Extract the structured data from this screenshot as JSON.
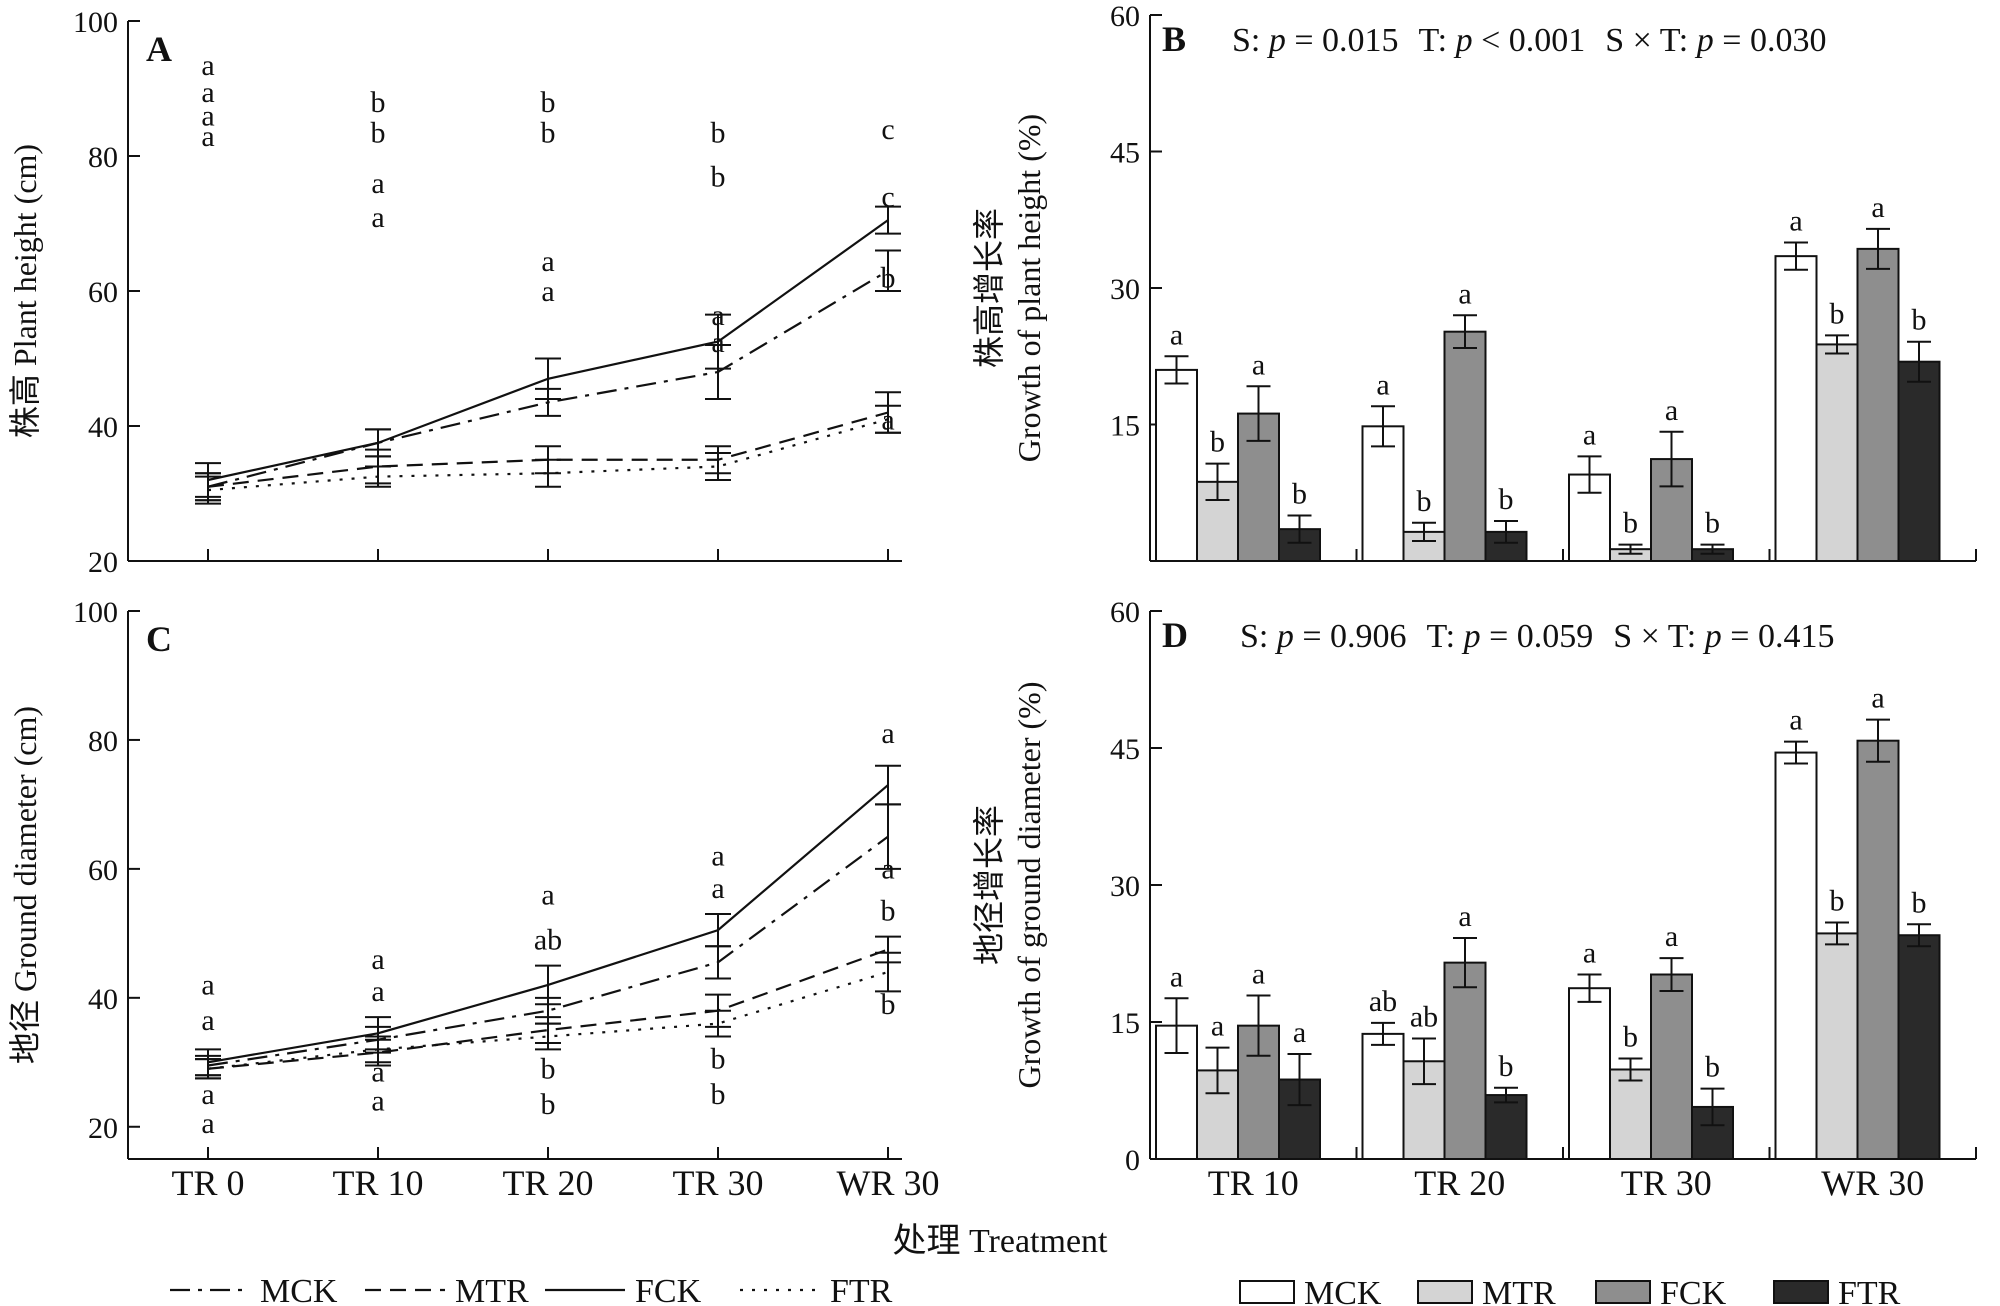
{
  "figure": {
    "xlabel_shared": "处理 Treatment",
    "line_legend": [
      {
        "name": "MCK",
        "style": "dashdot"
      },
      {
        "name": "MTR",
        "style": "dash"
      },
      {
        "name": "FCK",
        "style": "solid"
      },
      {
        "name": "FTR",
        "style": "dot"
      }
    ],
    "bar_legend": [
      {
        "name": "MCK",
        "color": "#ffffff"
      },
      {
        "name": "MTR",
        "color": "#d4d4d4"
      },
      {
        "name": "FCK",
        "color": "#8e8e8e"
      },
      {
        "name": "FTR",
        "color": "#2a2a2a"
      }
    ]
  },
  "chart_data": [
    {
      "panel": "A",
      "type": "line",
      "ylabel": "株高 Plant height (cm)",
      "ylim": [
        20,
        100
      ],
      "yticks": [
        20,
        40,
        60,
        80,
        100
      ],
      "categories": [
        "TR 0",
        "TR 10",
        "TR 20",
        "TR 30",
        "WR 30"
      ],
      "series": [
        {
          "name": "MCK",
          "style": "dashdot",
          "values": [
            31,
            37.5,
            43.5,
            48,
            63
          ],
          "err": [
            2,
            2,
            2,
            4,
            3
          ]
        },
        {
          "name": "MTR",
          "style": "dash",
          "values": [
            31,
            34,
            35,
            35,
            42
          ],
          "err": [
            2,
            2.5,
            2,
            2,
            3
          ]
        },
        {
          "name": "FCK",
          "style": "solid",
          "values": [
            32,
            37.5,
            47,
            52.5,
            70.5
          ],
          "err": [
            2.5,
            2,
            3,
            4,
            2
          ]
        },
        {
          "name": "FTR",
          "style": "dot",
          "values": [
            30.5,
            32.5,
            33,
            34,
            41
          ],
          "err": [
            2,
            1.5,
            2,
            2,
            2
          ]
        }
      ],
      "sig_labels": [
        {
          "cat": "TR 0",
          "value": 81.5,
          "text": "a"
        },
        {
          "cat": "TR 0",
          "value": 84.5,
          "text": "a"
        },
        {
          "cat": "TR 0",
          "value": 88,
          "text": "a"
        },
        {
          "cat": "TR 0",
          "value": 92,
          "text": "a"
        },
        {
          "cat": "TR 10",
          "value": 69.5,
          "text": "a"
        },
        {
          "cat": "TR 10",
          "value": 74.5,
          "text": "a"
        },
        {
          "cat": "TR 10",
          "value": 82,
          "text": "b"
        },
        {
          "cat": "TR 10",
          "value": 86.5,
          "text": "b"
        },
        {
          "cat": "TR 20",
          "value": 58.5,
          "text": "a"
        },
        {
          "cat": "TR 20",
          "value": 63,
          "text": "a"
        },
        {
          "cat": "TR 20",
          "value": 82,
          "text": "b"
        },
        {
          "cat": "TR 20",
          "value": 86.5,
          "text": "b"
        },
        {
          "cat": "TR 30",
          "value": 51,
          "text": "a"
        },
        {
          "cat": "TR 30",
          "value": 55,
          "text": "a"
        },
        {
          "cat": "TR 30",
          "value": 75.5,
          "text": "b"
        },
        {
          "cat": "TR 30",
          "value": 82,
          "text": "b"
        },
        {
          "cat": "WR 30",
          "value": 39.5,
          "text": "a"
        },
        {
          "cat": "WR 30",
          "value": 60.5,
          "text": "b"
        },
        {
          "cat": "WR 30",
          "value": 72.5,
          "text": "c"
        },
        {
          "cat": "WR 30",
          "value": 82.5,
          "text": "c"
        }
      ]
    },
    {
      "panel": "B",
      "type": "bar",
      "ylabel_top": "株高增长率",
      "ylabel_bottom": "Growth of plant height (%)",
      "stats": {
        "s_label": "S:",
        "s_p": "p",
        "s_val": "= 0.015",
        "t_label": "T:",
        "t_p": "p",
        "t_val": "< 0.001",
        "st_label": "S × T:",
        "st_p": "p",
        "st_val": "= 0.030"
      },
      "ylim": [
        0,
        60
      ],
      "yticks": [
        15,
        30,
        45,
        60
      ],
      "categories": [
        "TR 10",
        "TR 20",
        "TR 30",
        "WR 30"
      ],
      "show_xticklabels": false,
      "series": [
        {
          "name": "MCK",
          "values": [
            21,
            14.8,
            9.5,
            33.5
          ],
          "err": [
            1.5,
            2.2,
            2,
            1.5
          ]
        },
        {
          "name": "MTR",
          "values": [
            8.7,
            3.2,
            1.3,
            23.8
          ],
          "err": [
            2,
            1,
            0.5,
            1
          ]
        },
        {
          "name": "FCK",
          "values": [
            16.2,
            25.2,
            11.2,
            34.3
          ],
          "err": [
            3,
            1.8,
            3,
            2.2
          ]
        },
        {
          "name": "FTR",
          "values": [
            3.5,
            3.2,
            1.3,
            21.9
          ],
          "err": [
            1.5,
            1.2,
            0.5,
            2.2
          ]
        }
      ],
      "sig": [
        [
          "a",
          "b",
          "a",
          "b"
        ],
        [
          "a",
          "b",
          "a",
          "b"
        ],
        [
          "a",
          "b",
          "a",
          "b"
        ],
        [
          "a",
          "b",
          "a",
          "b"
        ]
      ]
    },
    {
      "panel": "C",
      "type": "line",
      "ylabel": "地径 Ground diameter (cm)",
      "ylim": [
        15,
        100
      ],
      "yticks": [
        20,
        40,
        60,
        80,
        100
      ],
      "categories": [
        "TR 0",
        "TR 10",
        "TR 20",
        "TR 30",
        "WR 30"
      ],
      "xtick_labels": [
        "TR 0",
        "TR 10",
        "TR 20",
        "TR 30",
        "WR 30"
      ],
      "series": [
        {
          "name": "MCK",
          "style": "dashdot",
          "values": [
            29.5,
            33.5,
            38,
            45.5,
            65
          ],
          "err": [
            1.5,
            2,
            2,
            2.5,
            5
          ]
        },
        {
          "name": "MTR",
          "style": "dash",
          "values": [
            29,
            31.5,
            35,
            38,
            47.5
          ],
          "err": [
            1.5,
            2,
            2,
            2.5,
            2
          ]
        },
        {
          "name": "FCK",
          "style": "solid",
          "values": [
            30,
            34.5,
            42,
            50.5,
            73
          ],
          "err": [
            2,
            2.5,
            3,
            2.5,
            3
          ]
        },
        {
          "name": "FTR",
          "style": "dot",
          "values": [
            29,
            32,
            34,
            36,
            44
          ],
          "err": [
            1.5,
            2,
            2,
            2,
            3
          ]
        }
      ],
      "sig_labels": [
        {
          "cat": "TR 0",
          "value": 40.5,
          "text": "a"
        },
        {
          "cat": "TR 0",
          "value": 35,
          "text": "a"
        },
        {
          "cat": "TR 0",
          "value": 23.5,
          "text": "a"
        },
        {
          "cat": "TR 0",
          "value": 19,
          "text": "a"
        },
        {
          "cat": "TR 10",
          "value": 44.5,
          "text": "a"
        },
        {
          "cat": "TR 10",
          "value": 39.5,
          "text": "a"
        },
        {
          "cat": "TR 10",
          "value": 27,
          "text": "a"
        },
        {
          "cat": "TR 10",
          "value": 22.5,
          "text": "a"
        },
        {
          "cat": "TR 20",
          "value": 54.5,
          "text": "a"
        },
        {
          "cat": "TR 20",
          "value": 47.5,
          "text": "ab"
        },
        {
          "cat": "TR 20",
          "value": 27.5,
          "text": "b"
        },
        {
          "cat": "TR 20",
          "value": 22,
          "text": "b"
        },
        {
          "cat": "TR 30",
          "value": 60.5,
          "text": "a"
        },
        {
          "cat": "TR 30",
          "value": 55.5,
          "text": "a"
        },
        {
          "cat": "TR 30",
          "value": 29,
          "text": "b"
        },
        {
          "cat": "TR 30",
          "value": 23.5,
          "text": "b"
        },
        {
          "cat": "WR 30",
          "value": 79.5,
          "text": "a"
        },
        {
          "cat": "WR 30",
          "value": 58.5,
          "text": "a"
        },
        {
          "cat": "WR 30",
          "value": 52,
          "text": "b"
        },
        {
          "cat": "WR 30",
          "value": 37.5,
          "text": "b"
        }
      ]
    },
    {
      "panel": "D",
      "type": "bar",
      "ylabel_top": "地径增长率",
      "ylabel_bottom": "Growth of ground diameter (%)",
      "stats": {
        "s_label": "S:",
        "s_p": "p",
        "s_val": "= 0.906",
        "t_label": "T:",
        "t_p": "p",
        "t_val": "= 0.059",
        "st_label": "S × T:",
        "st_p": "p",
        "st_val": "= 0.415"
      },
      "ylim": [
        0,
        60
      ],
      "yticks": [
        0,
        15,
        30,
        45,
        60
      ],
      "categories": [
        "TR 10",
        "TR 20",
        "TR 30",
        "WR 30"
      ],
      "show_xticklabels": true,
      "series": [
        {
          "name": "MCK",
          "values": [
            14.6,
            13.7,
            18.7,
            44.5
          ],
          "err": [
            3,
            1.2,
            1.5,
            1.2
          ]
        },
        {
          "name": "MTR",
          "values": [
            9.7,
            10.7,
            9.8,
            24.7
          ],
          "err": [
            2.5,
            2.5,
            1.2,
            1.2
          ]
        },
        {
          "name": "FCK",
          "values": [
            14.6,
            21.5,
            20.2,
            45.8
          ],
          "err": [
            3.3,
            2.7,
            1.8,
            2.3
          ]
        },
        {
          "name": "FTR",
          "values": [
            8.7,
            7,
            5.7,
            24.5
          ],
          "err": [
            2.8,
            0.8,
            2,
            1.2
          ]
        }
      ],
      "sig": [
        [
          "a",
          "a",
          "a",
          "a"
        ],
        [
          "ab",
          "ab",
          "a",
          "b"
        ],
        [
          "a",
          "b",
          "a",
          "b"
        ],
        [
          "a",
          "b",
          "a",
          "b"
        ]
      ]
    }
  ]
}
